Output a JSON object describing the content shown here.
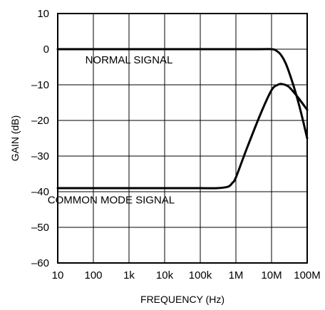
{
  "chart_data": {
    "type": "line",
    "title": "",
    "xlabel": "FREQUENCY (Hz)",
    "ylabel": "GAIN (dB)",
    "xscale": "log",
    "xlim": [
      10,
      100000000
    ],
    "ylim": [
      -60,
      10
    ],
    "grid": true,
    "x_ticks": [
      {
        "value": 10,
        "label": "10"
      },
      {
        "value": 100,
        "label": "100"
      },
      {
        "value": 1000,
        "label": "1k"
      },
      {
        "value": 10000,
        "label": "10k"
      },
      {
        "value": 100000,
        "label": "100k"
      },
      {
        "value": 1000000,
        "label": "1M"
      },
      {
        "value": 10000000,
        "label": "10M"
      },
      {
        "value": 100000000,
        "label": "100M"
      }
    ],
    "y_ticks": [
      {
        "value": 10,
        "label": "10"
      },
      {
        "value": 0,
        "label": "0"
      },
      {
        "value": -10,
        "label": "–10"
      },
      {
        "value": -20,
        "label": "–20"
      },
      {
        "value": -30,
        "label": "–30"
      },
      {
        "value": -40,
        "label": "–40"
      },
      {
        "value": -50,
        "label": "–50"
      },
      {
        "value": -60,
        "label": "–60"
      }
    ],
    "series": [
      {
        "name": "NORMAL SIGNAL",
        "x": [
          10,
          100,
          1000,
          10000,
          100000,
          1000000,
          5000000,
          10000000,
          13000000,
          18000000,
          25000000,
          35000000,
          50000000,
          70000000,
          100000000
        ],
        "y": [
          0,
          0,
          0,
          0,
          0,
          0,
          0,
          0,
          -0.3,
          -1.5,
          -4,
          -8,
          -13,
          -18.5,
          -25
        ]
      },
      {
        "name": "COMMON MODE SIGNAL",
        "x": [
          10,
          100,
          1000,
          10000,
          100000,
          300000,
          600000,
          800000,
          1000000,
          2000000,
          5000000,
          10000000,
          15000000,
          20000000,
          30000000,
          50000000,
          100000000
        ],
        "y": [
          -39,
          -39,
          -39,
          -39,
          -39,
          -39,
          -38.6,
          -37.5,
          -36,
          -28,
          -18,
          -11.5,
          -10,
          -9.8,
          -10.5,
          -13,
          -17
        ]
      }
    ],
    "annotations": [
      {
        "text": "NORMAL SIGNAL",
        "x": 1000,
        "y": -4
      },
      {
        "text": "COMMON MODE SIGNAL",
        "x": 316,
        "y": -43.3
      }
    ]
  }
}
